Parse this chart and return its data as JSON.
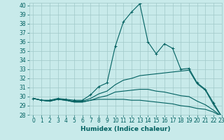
{
  "xlabel": "Humidex (Indice chaleur)",
  "ylabel": "",
  "bg_color": "#c8eaea",
  "grid_color": "#a0c8c8",
  "line_color": "#006060",
  "xlim": [
    -0.5,
    23
  ],
  "ylim": [
    28,
    40.3
  ],
  "xticks": [
    0,
    1,
    2,
    3,
    4,
    5,
    6,
    7,
    8,
    9,
    10,
    11,
    12,
    13,
    14,
    15,
    16,
    17,
    18,
    19,
    20,
    21,
    22,
    23
  ],
  "yticks": [
    28,
    29,
    30,
    31,
    32,
    33,
    34,
    35,
    36,
    37,
    38,
    39,
    40
  ],
  "lines": [
    {
      "x": [
        0,
        1,
        2,
        3,
        4,
        5,
        6,
        7,
        8,
        9,
        10,
        11,
        12,
        13,
        14,
        15,
        16,
        17,
        18,
        19,
        20,
        21,
        22,
        23
      ],
      "y": [
        29.8,
        29.6,
        29.6,
        29.8,
        29.7,
        29.6,
        29.6,
        30.2,
        31.1,
        31.5,
        35.5,
        38.2,
        39.3,
        40.2,
        36.0,
        34.7,
        35.8,
        35.3,
        33.0,
        33.1,
        31.5,
        30.8,
        29.3,
        27.8
      ],
      "marker": "+"
    },
    {
      "x": [
        0,
        1,
        2,
        3,
        4,
        5,
        6,
        7,
        8,
        9,
        10,
        11,
        12,
        13,
        14,
        15,
        16,
        17,
        18,
        19,
        20,
        21,
        22,
        23
      ],
      "y": [
        29.8,
        29.6,
        29.5,
        29.7,
        29.6,
        29.5,
        29.5,
        29.8,
        30.3,
        30.6,
        31.3,
        31.8,
        32.0,
        32.3,
        32.4,
        32.5,
        32.6,
        32.7,
        32.8,
        32.9,
        31.4,
        30.7,
        29.1,
        27.8
      ],
      "marker": null
    },
    {
      "x": [
        0,
        1,
        2,
        3,
        4,
        5,
        6,
        7,
        8,
        9,
        10,
        11,
        12,
        13,
        14,
        15,
        16,
        17,
        18,
        19,
        20,
        21,
        22,
        23
      ],
      "y": [
        29.8,
        29.6,
        29.5,
        29.7,
        29.6,
        29.4,
        29.4,
        29.6,
        29.9,
        30.1,
        30.5,
        30.6,
        30.7,
        30.8,
        30.8,
        30.6,
        30.5,
        30.3,
        30.1,
        30.0,
        29.5,
        29.1,
        28.5,
        27.8
      ],
      "marker": null
    },
    {
      "x": [
        0,
        1,
        2,
        3,
        4,
        5,
        6,
        7,
        8,
        9,
        10,
        11,
        12,
        13,
        14,
        15,
        16,
        17,
        18,
        19,
        20,
        21,
        22,
        23
      ],
      "y": [
        29.8,
        29.6,
        29.5,
        29.7,
        29.6,
        29.4,
        29.4,
        29.6,
        29.7,
        29.7,
        29.7,
        29.7,
        29.6,
        29.6,
        29.5,
        29.4,
        29.3,
        29.2,
        29.0,
        28.9,
        28.7,
        28.6,
        28.3,
        27.8
      ],
      "marker": null
    }
  ],
  "marker_size": 3,
  "line_width": 0.8,
  "tick_fontsize": 5.5,
  "label_fontsize": 6.5
}
